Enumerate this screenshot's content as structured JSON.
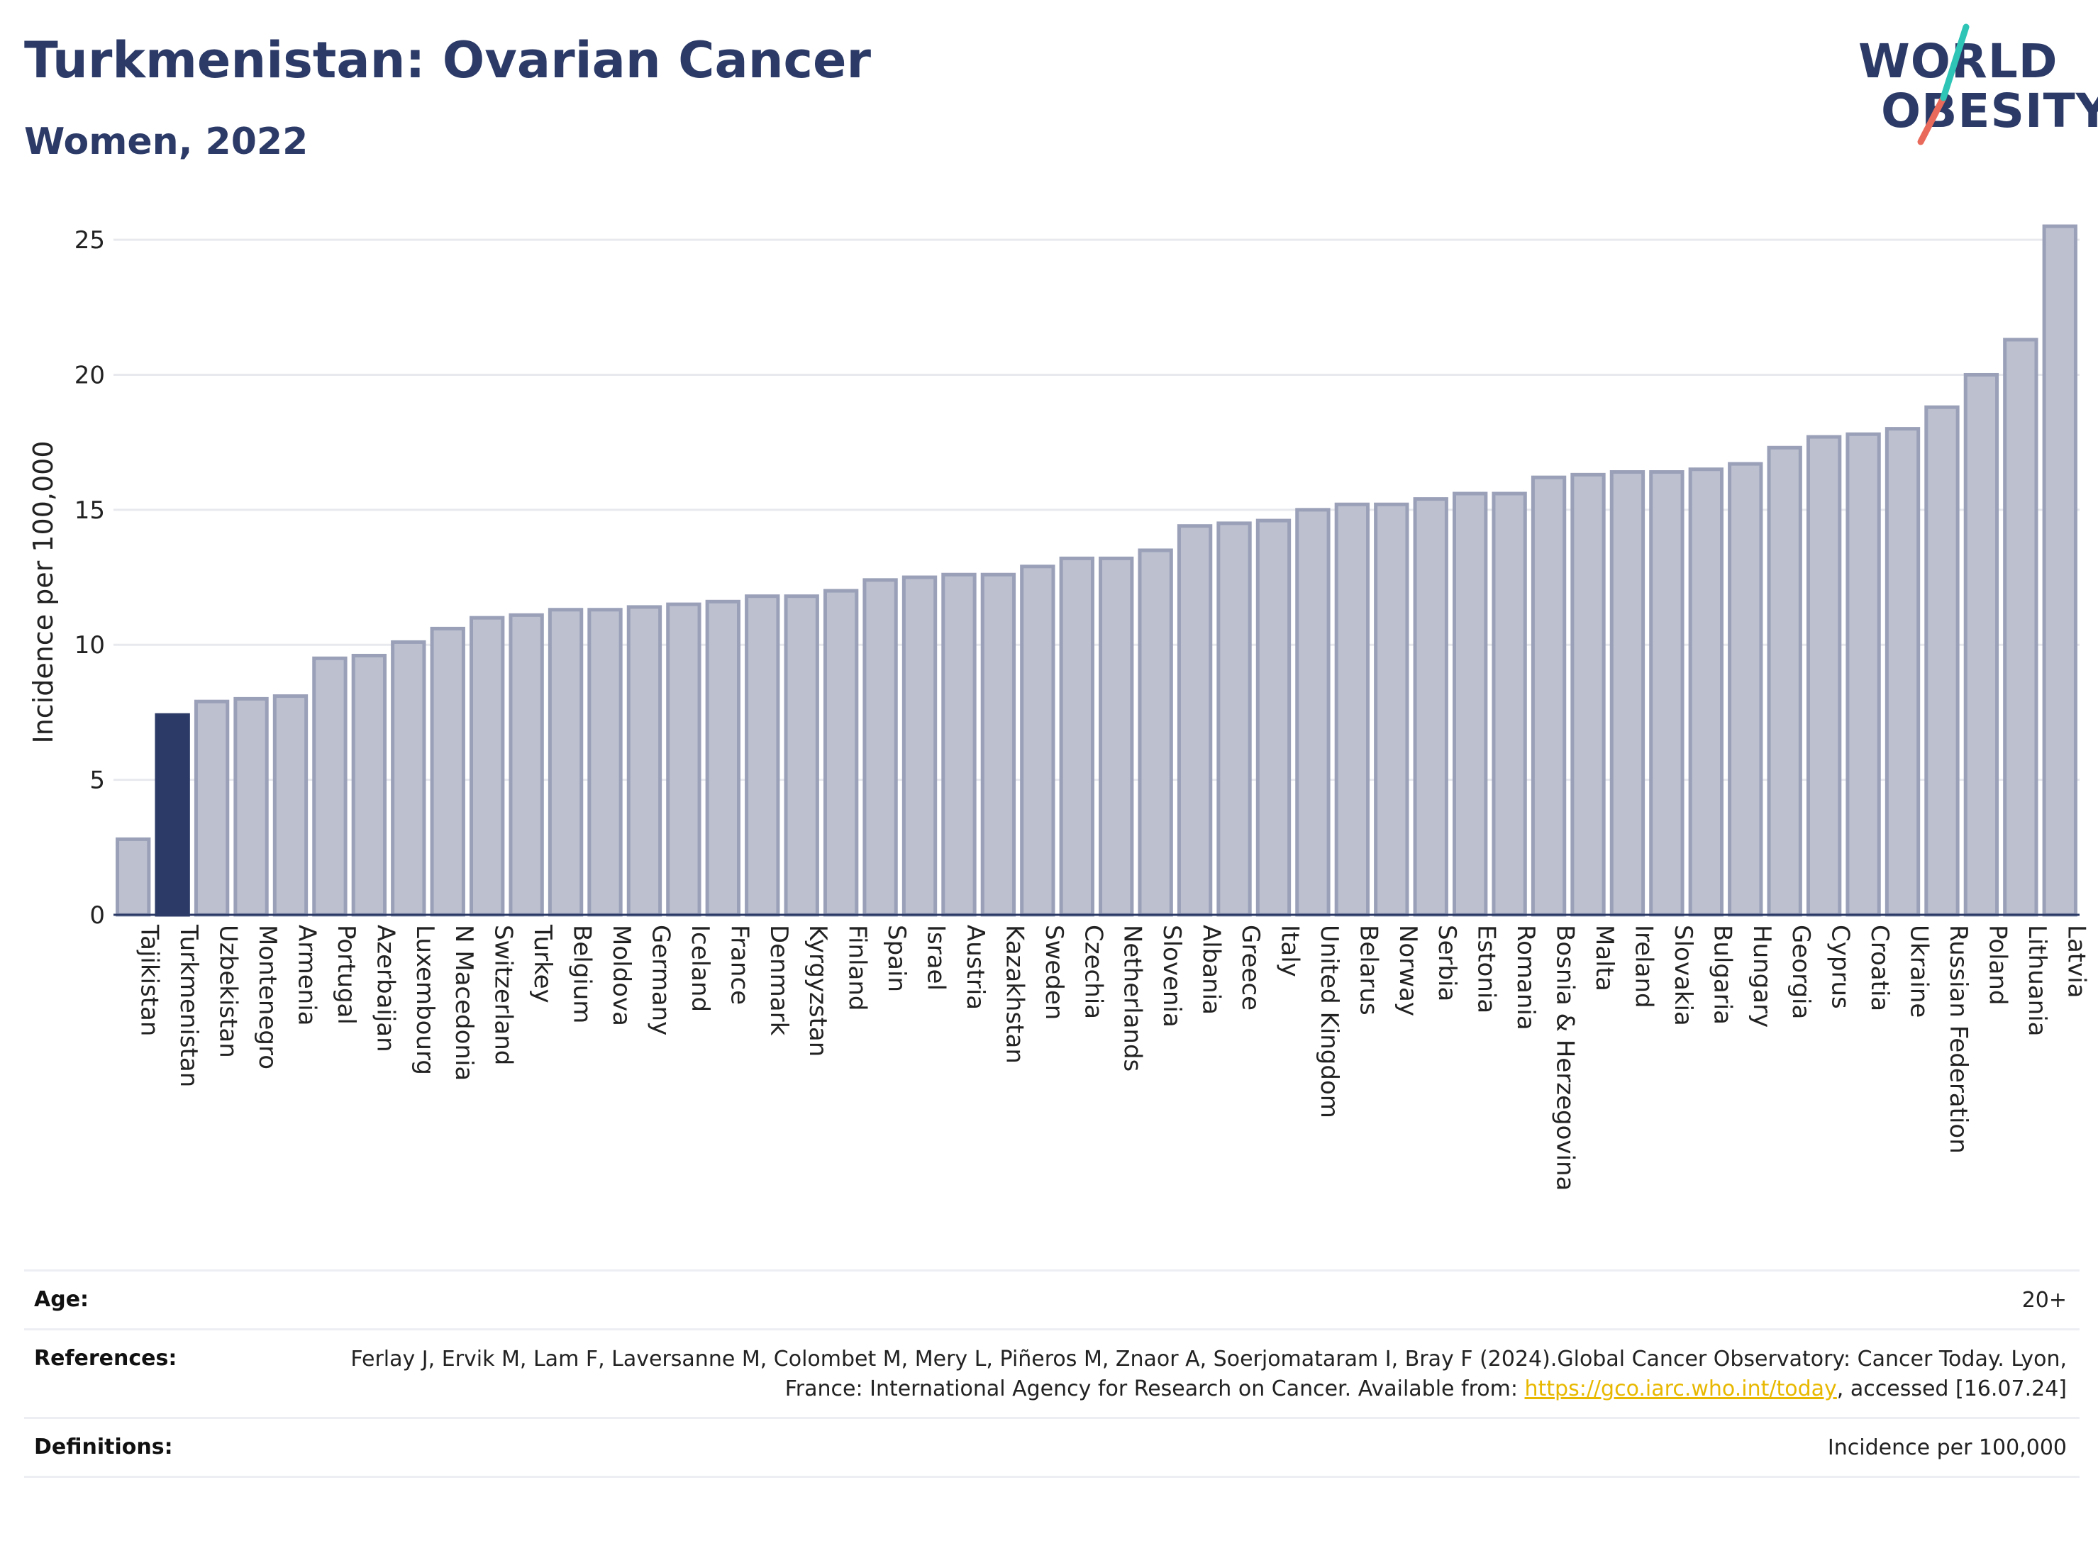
{
  "header": {
    "title": "Turkmenistan: Ovarian Cancer",
    "subtitle": "Women, 2022"
  },
  "logo": {
    "line1": "WORLD",
    "line2": "OBESITY",
    "accent_colors": [
      "#2ec4b6",
      "#e96a5b"
    ]
  },
  "colors": {
    "highlight": "#2b3a67",
    "bar": "#bcc0cf",
    "bar_edge": "#9aa0b8",
    "axis": "#2b3a67",
    "grid": "#e8e9ee"
  },
  "chart_data": {
    "type": "bar",
    "title": "Turkmenistan: Ovarian Cancer",
    "subtitle": "Women, 2022",
    "xlabel": "",
    "ylabel": "Incidence per 100,000",
    "ylim": [
      0,
      26
    ],
    "yticks": [
      0,
      5,
      10,
      15,
      20,
      25
    ],
    "grid": true,
    "highlight": "Turkmenistan",
    "categories": [
      "Tajikistan",
      "Turkmenistan",
      "Uzbekistan",
      "Montenegro",
      "Armenia",
      "Portugal",
      "Azerbaijan",
      "Luxembourg",
      "N Macedonia",
      "Switzerland",
      "Turkey",
      "Belgium",
      "Moldova",
      "Germany",
      "Iceland",
      "France",
      "Denmark",
      "Kyrgyzstan",
      "Finland",
      "Spain",
      "Israel",
      "Austria",
      "Kazakhstan",
      "Sweden",
      "Czechia",
      "Netherlands",
      "Slovenia",
      "Albania",
      "Greece",
      "Italy",
      "United Kingdom",
      "Belarus",
      "Norway",
      "Serbia",
      "Estonia",
      "Romania",
      "Bosnia & Herzegovina",
      "Malta",
      "Ireland",
      "Slovakia",
      "Bulgaria",
      "Hungary",
      "Georgia",
      "Cyprus",
      "Croatia",
      "Ukraine",
      "Russian Federation",
      "Poland",
      "Lithuania",
      "Latvia"
    ],
    "values": [
      2.8,
      7.4,
      7.9,
      8.0,
      8.1,
      9.5,
      9.6,
      10.1,
      10.6,
      11.0,
      11.1,
      11.3,
      11.3,
      11.4,
      11.5,
      11.6,
      11.8,
      11.8,
      12.0,
      12.4,
      12.5,
      12.6,
      12.6,
      12.9,
      13.2,
      13.2,
      13.5,
      14.4,
      14.5,
      14.6,
      15.0,
      15.2,
      15.2,
      15.4,
      15.6,
      15.6,
      16.2,
      16.3,
      16.4,
      16.4,
      16.5,
      16.7,
      17.3,
      17.7,
      17.8,
      18.0,
      18.8,
      20.0,
      21.3,
      25.5
    ]
  },
  "info": {
    "age_label": "Age:",
    "age_value": "20+",
    "references_label": "References:",
    "references_text_1": "Ferlay J, Ervik M, Lam F, Laversanne M, Colombet M, Mery L, Piñeros M, Znaor A, Soerjomataram I, Bray F (2024).Global Cancer Observatory: Cancer Today. Lyon, France: International Agency for Research on Cancer. Available from: ",
    "references_link": "https://gco.iarc.who.int/today",
    "references_text_2": ", accessed [16.07.24]",
    "definitions_label": "Definitions:",
    "definitions_value": "Incidence per 100,000"
  }
}
